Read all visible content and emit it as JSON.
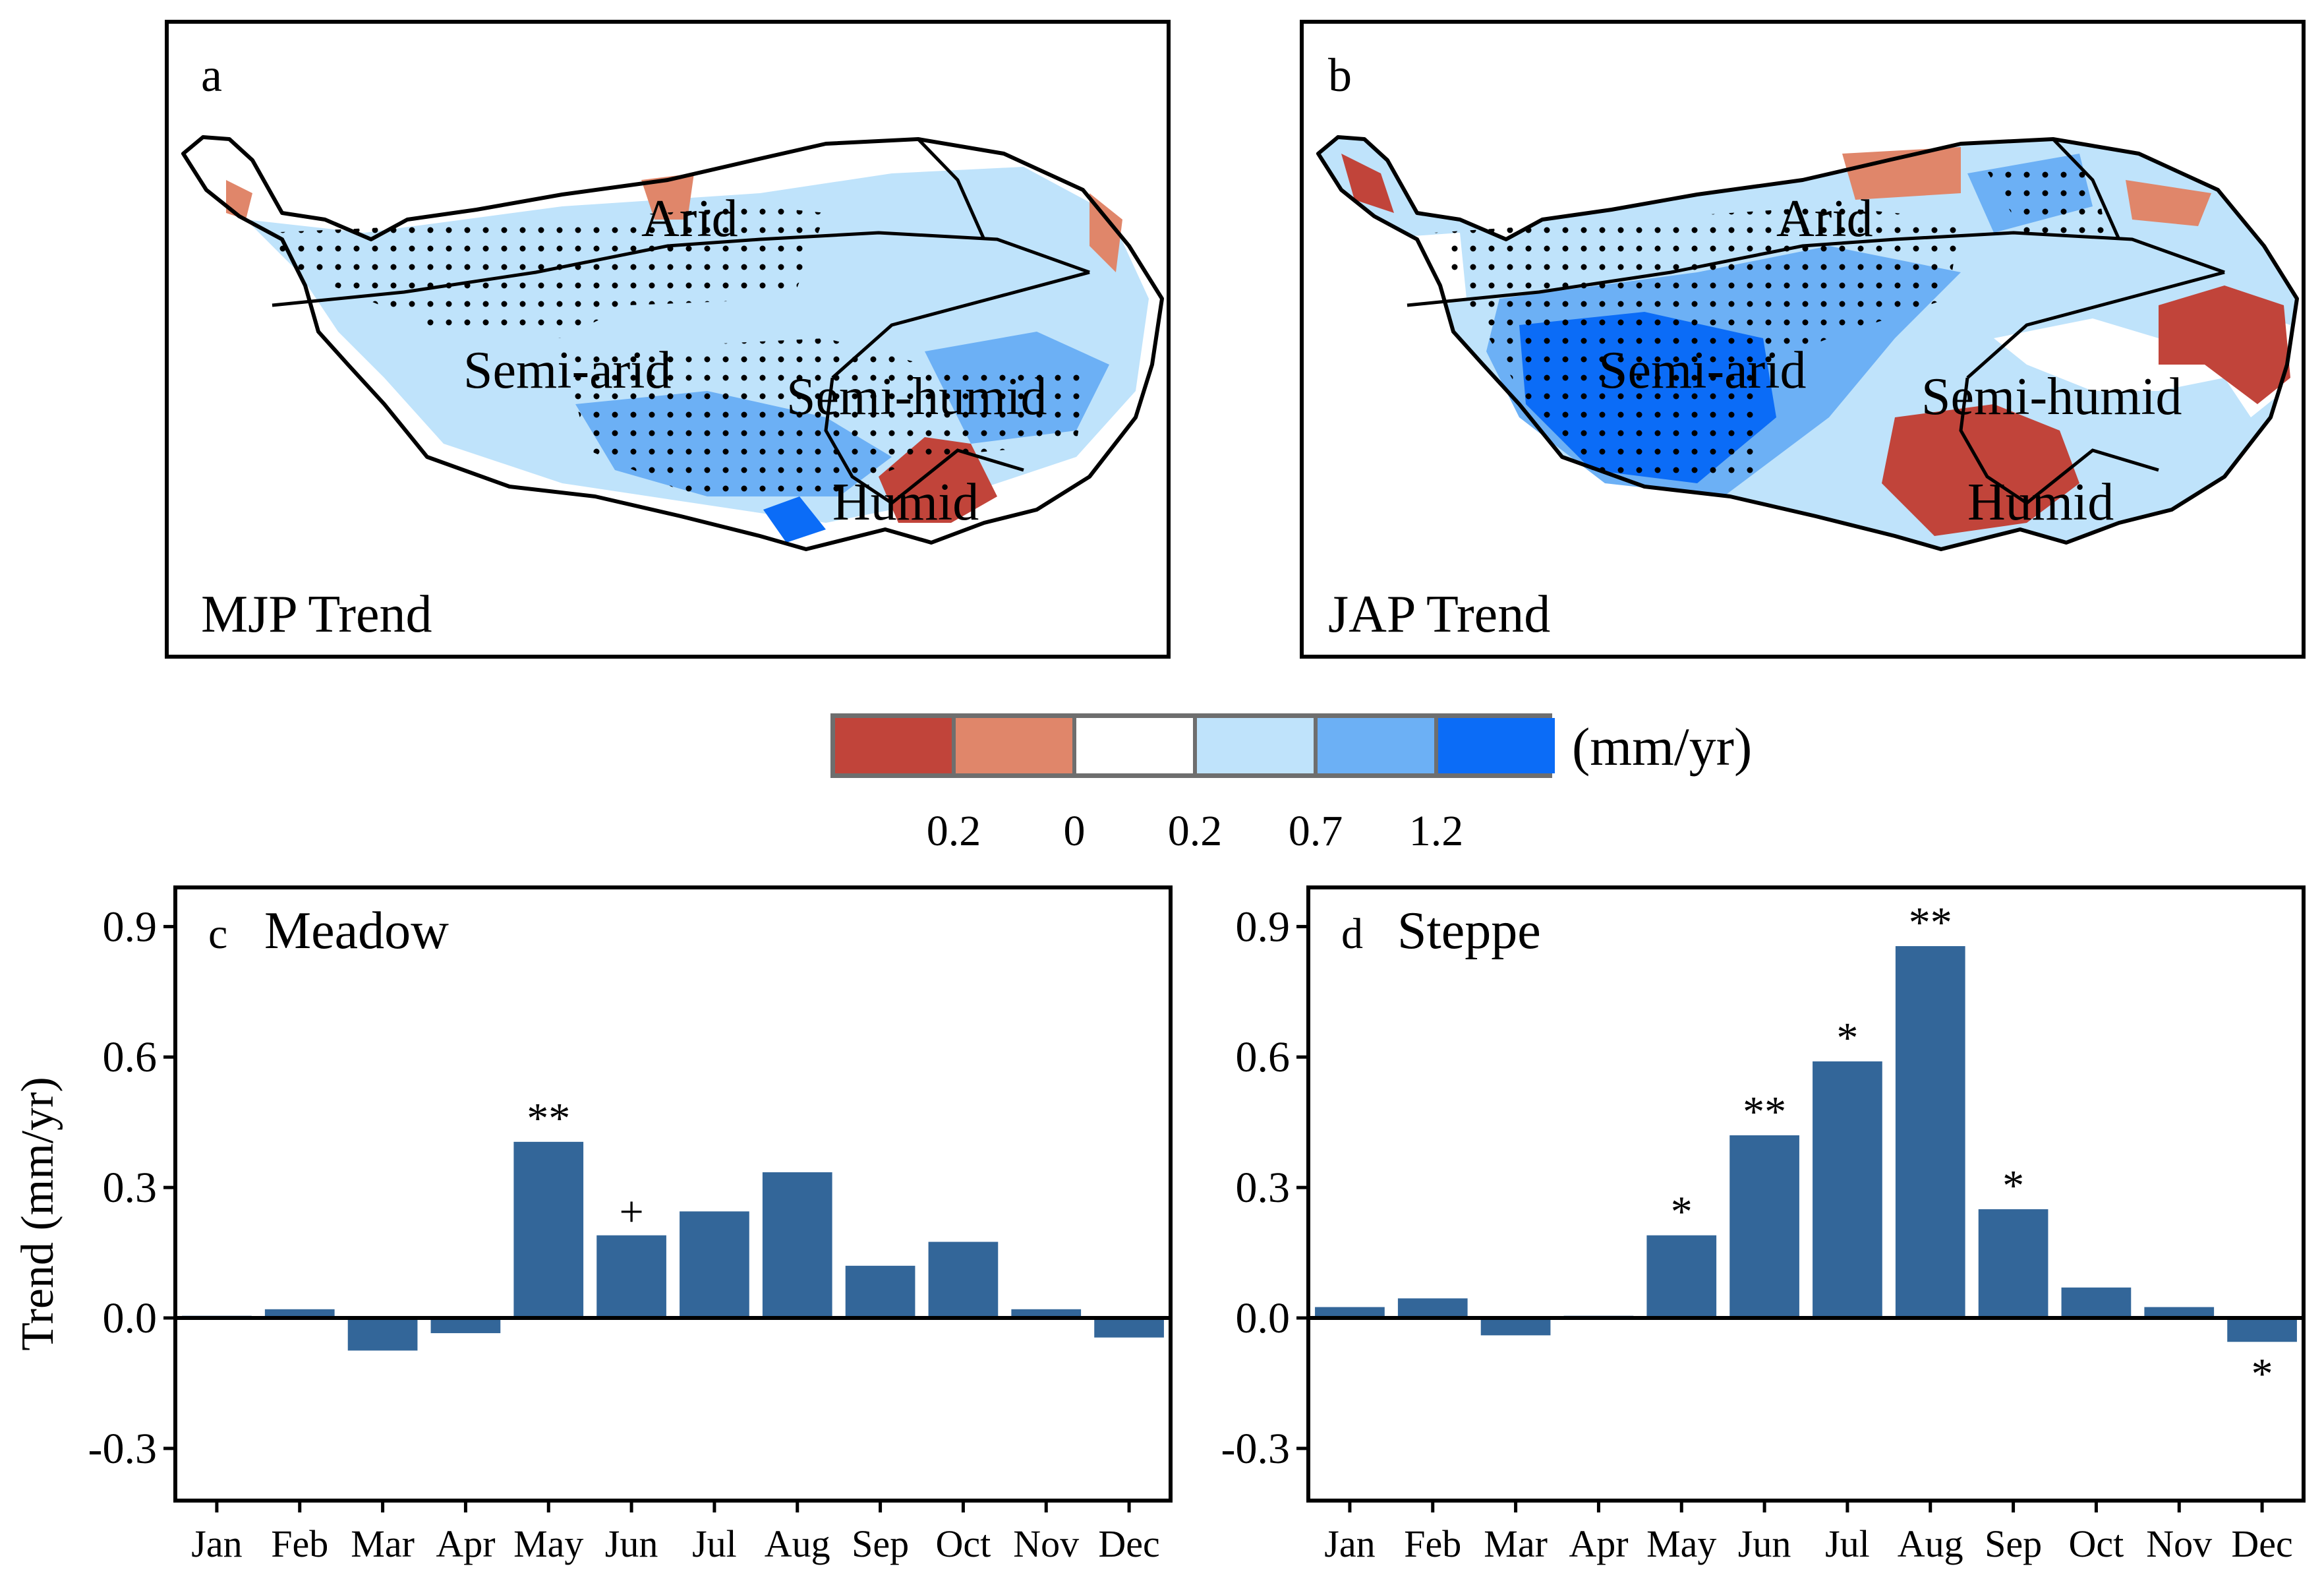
{
  "maps": [
    {
      "letter": "a",
      "title": "MJP Trend",
      "regions": {
        "arid": "Arid",
        "semiarid": "Semi-arid",
        "semihumid": "Semi-humid",
        "humid": "Humid"
      }
    },
    {
      "letter": "b",
      "title": "JAP Trend",
      "regions": {
        "arid": "Arid",
        "semiarid": "Semi-arid",
        "semihumid": "Semi-humid",
        "humid": "Humid"
      }
    }
  ],
  "legend": {
    "unit": "(mm/yr)",
    "colors": [
      "#c1443a",
      "#e0866a",
      "#ffffff",
      "#bfe3fb",
      "#6cb0f5",
      "#0b6cf7"
    ],
    "labels": [
      "0.2",
      "0",
      "0.2",
      "0.7",
      "1.2"
    ]
  },
  "chart_data": [
    {
      "type": "bar",
      "panel": "c",
      "title": "Meadow",
      "ylabel": "Trend (mm/yr)",
      "categories": [
        "Jan",
        "Feb",
        "Mar",
        "Apr",
        "May",
        "Jun",
        "Jul",
        "Aug",
        "Sep",
        "Oct",
        "Nov",
        "Dec"
      ],
      "values": [
        0.005,
        0.02,
        -0.075,
        -0.035,
        0.405,
        0.19,
        0.245,
        0.335,
        0.12,
        0.175,
        0.02,
        -0.045
      ],
      "significance": [
        "",
        "",
        "",
        "",
        "**",
        "+",
        "",
        "",
        "",
        "",
        "",
        ""
      ],
      "ylim": [
        -0.42,
        0.99
      ],
      "yticks": [
        "-0.3",
        "0.0",
        "0.3",
        "0.6",
        "0.9"
      ],
      "grid": false
    },
    {
      "type": "bar",
      "panel": "d",
      "title": "Steppe",
      "ylabel": "",
      "categories": [
        "Jan",
        "Feb",
        "Mar",
        "Apr",
        "May",
        "Jun",
        "Jul",
        "Aug",
        "Sep",
        "Oct",
        "Nov",
        "Dec"
      ],
      "values": [
        0.025,
        0.045,
        -0.04,
        0.005,
        0.19,
        0.42,
        0.59,
        0.855,
        0.25,
        0.07,
        0.025,
        -0.055
      ],
      "significance": [
        "",
        "",
        "",
        "",
        "*",
        "**",
        "*",
        "**",
        "*",
        "",
        "",
        "*"
      ],
      "ylim": [
        -0.42,
        0.99
      ],
      "yticks": [
        "-0.3",
        "0.0",
        "0.3",
        "0.6",
        "0.9"
      ],
      "grid": false
    }
  ]
}
